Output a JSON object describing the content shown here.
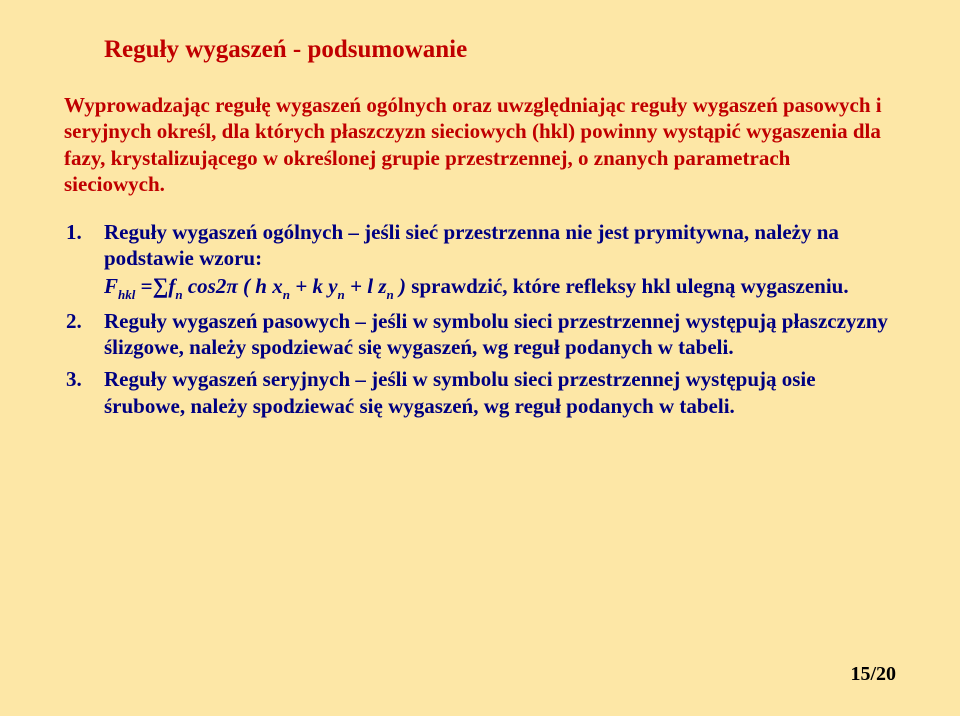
{
  "title": "Reguły wygaszeń - podsumowanie",
  "intro": "Wyprowadzając regułę wygaszeń ogólnych oraz uwzględniając reguły wygaszeń pasowych i  seryjnych określ, dla których płaszczyzn sieciowych (hkl) powinny wystąpić wygaszenia dla fazy, krystalizującego w określonej grupie przestrzennej, o znanych parametrach sieciowych.",
  "item1_a": "Reguły wygaszeń ogólnych – jeśli sieć przestrzenna nie jest prymitywna, należy na podstawie wzoru:",
  "item1_b": " sprawdzić, które refleksy hkl ulegną wygaszeniu.",
  "formula": {
    "F": "F",
    "hkl": "hkl",
    "eq": " =",
    "f": "f",
    "n": "n",
    "cos2": " cos2",
    "pi": "π",
    "open": " ( h x",
    "mid1": " + k y",
    "mid2": " + l z",
    "close": " )"
  },
  "item2": "Reguły wygaszeń pasowych – jeśli w symbolu sieci przestrzennej występują płaszczyzny ślizgowe, należy spodziewać się wygaszeń, wg reguł podanych w tabeli.",
  "item3": "Reguły wygaszeń seryjnych – jeśli w symbolu sieci przestrzennej występują osie śrubowe, należy spodziewać się wygaszeń, wg reguł podanych w tabeli.",
  "footer": "15/20"
}
